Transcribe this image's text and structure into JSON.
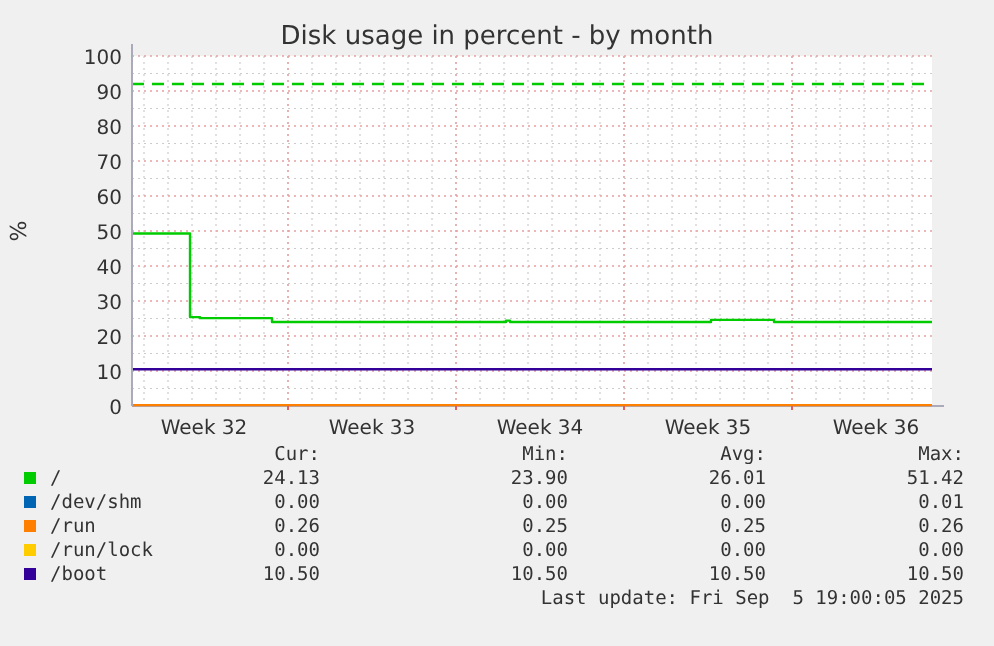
{
  "chart_data": {
    "type": "step",
    "title": "Disk usage in percent - by month",
    "ylabel": "%",
    "xlim": [
      "2025-08-04T12:00",
      "2025-09-06T20:00"
    ],
    "xticks": [
      {
        "value": "2025-08-07T12:00",
        "label": "Week 32"
      },
      {
        "value": "2025-08-11",
        "label": null
      },
      {
        "value": "2025-08-14T12:00",
        "label": "Week 33"
      },
      {
        "value": "2025-08-18",
        "label": null
      },
      {
        "value": "2025-08-21T12:00",
        "label": "Week 34"
      },
      {
        "value": "2025-08-25",
        "label": null
      },
      {
        "value": "2025-08-28T12:00",
        "label": "Week 35"
      },
      {
        "value": "2025-09-01",
        "label": null
      },
      {
        "value": "2025-09-04T12:00",
        "label": "Week 36"
      }
    ],
    "ylim": [
      0,
      100
    ],
    "yticks": [
      0,
      10,
      20,
      30,
      40,
      50,
      60,
      70,
      80,
      90,
      100
    ],
    "grid": true,
    "legend": "bottom",
    "ref_lines": [
      {
        "axis": "y",
        "value": 92,
        "color": "#00cc00",
        "line_style": "dashed"
      }
    ],
    "series": [
      {
        "name": "/",
        "color": "#00cc00",
        "x": [
          "2025-08-04T12:00",
          "2025-08-06T22:00",
          "2025-08-07T08:00",
          "2025-08-10T08:00",
          "2025-08-20T02:00",
          "2025-08-20T06:00",
          "2025-08-28T15:00",
          "2025-08-31T06:00",
          "2025-09-06T20:00"
        ],
        "values": [
          49.3,
          25.4,
          25.1,
          24.0,
          24.4,
          24.0,
          24.6,
          24.0,
          24.0
        ]
      },
      {
        "name": "/dev/shm",
        "color": "#0066b3",
        "values": [
          null,
          null
        ]
      },
      {
        "name": "/run",
        "color": "#ff8000",
        "x": [
          "2025-08-04T12:00",
          "2025-09-06T20:00"
        ],
        "values": [
          0.26,
          0.26
        ]
      },
      {
        "name": "/run/lock",
        "color": "#ffcc00",
        "values": [
          null,
          null
        ]
      },
      {
        "name": "/boot",
        "color": "#330099",
        "x": [
          "2025-08-04T12:00",
          "2025-09-06T20:00"
        ],
        "values": [
          10.5,
          10.5
        ]
      }
    ],
    "annotations": [
      "Cur:",
      "Min:",
      "Avg:",
      "Max:",
      "24.13",
      "23.90",
      "26.01",
      "51.42",
      "0.00",
      "0.00",
      "0.00",
      "0.01",
      "0.26",
      "0.25",
      "0.25",
      "0.26",
      "0.00",
      "0.00",
      "0.00",
      "0.00",
      "10.50",
      "10.50",
      "10.50",
      "10.50",
      "Last update: Fri Sep  5 19:00:05 2025"
    ]
  }
}
